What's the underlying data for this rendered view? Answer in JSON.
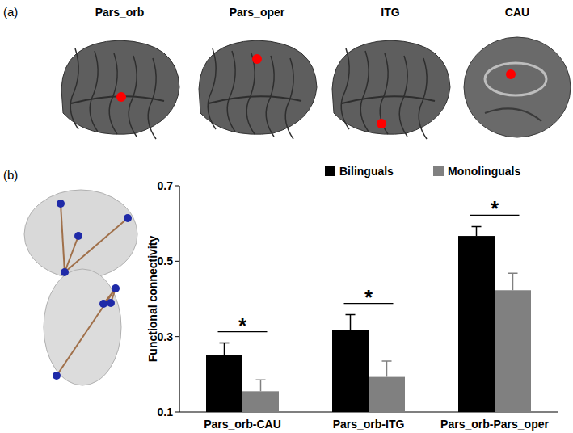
{
  "panel_labels": [
    "(a)",
    "(b)"
  ],
  "regions": [
    "Pars_orb",
    "Pars_oper",
    "ITG",
    "CAU"
  ],
  "chart_data": {
    "type": "bar",
    "categories": [
      "Pars_orb-CAU",
      "Pars_orb-ITG",
      "Pars_orb-Pars_oper"
    ],
    "series": [
      {
        "name": "Bilinguals",
        "color": "#000000",
        "values": [
          0.25,
          0.318,
          0.567
        ],
        "errors": [
          0.033,
          0.04,
          0.025
        ]
      },
      {
        "name": "Monolinguals",
        "color": "#808080",
        "values": [
          0.155,
          0.193,
          0.423
        ],
        "errors": [
          0.03,
          0.042,
          0.045
        ]
      }
    ],
    "annotations": [
      "*",
      "*",
      "*"
    ],
    "y_label": "Functional connectivity",
    "ylim": [
      0.1,
      0.7
    ],
    "yticks": [
      0.1,
      0.3,
      0.5,
      0.7
    ],
    "grid": false,
    "legend": "top"
  }
}
